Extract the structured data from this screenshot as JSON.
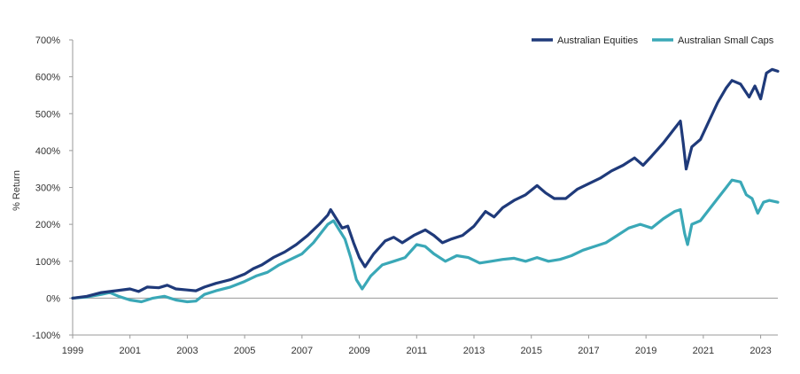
{
  "chart_data": {
    "type": "line",
    "title": "",
    "xlabel": "",
    "ylabel": "% Return",
    "xlim": [
      1999,
      2023.6
    ],
    "ylim": [
      -100,
      700
    ],
    "x_ticks": [
      1999,
      2001,
      2003,
      2005,
      2007,
      2009,
      2011,
      2013,
      2015,
      2017,
      2019,
      2021,
      2023
    ],
    "x_tick_labels": [
      "1999",
      "2001",
      "2003",
      "2005",
      "2007",
      "2009",
      "2011",
      "2013",
      "2015",
      "2017",
      "2019",
      "2021",
      "2023"
    ],
    "y_ticks": [
      -100,
      0,
      100,
      200,
      300,
      400,
      500,
      600,
      700
    ],
    "y_tick_labels": [
      "-100%",
      "0%",
      "100%",
      "200%",
      "300%",
      "400%",
      "500%",
      "600%",
      "700%"
    ],
    "grid": false,
    "legend_position": "top-right",
    "series": [
      {
        "name": "Australian Equities",
        "color": "#1f3a7a",
        "points": [
          [
            1999.0,
            0
          ],
          [
            1999.5,
            5
          ],
          [
            2000.0,
            15
          ],
          [
            2000.5,
            20
          ],
          [
            2001.0,
            25
          ],
          [
            2001.3,
            18
          ],
          [
            2001.6,
            30
          ],
          [
            2002.0,
            28
          ],
          [
            2002.3,
            35
          ],
          [
            2002.6,
            25
          ],
          [
            2003.0,
            22
          ],
          [
            2003.3,
            20
          ],
          [
            2003.6,
            30
          ],
          [
            2004.0,
            40
          ],
          [
            2004.5,
            50
          ],
          [
            2005.0,
            65
          ],
          [
            2005.3,
            80
          ],
          [
            2005.6,
            90
          ],
          [
            2006.0,
            110
          ],
          [
            2006.4,
            125
          ],
          [
            2006.8,
            145
          ],
          [
            2007.2,
            170
          ],
          [
            2007.6,
            200
          ],
          [
            2007.9,
            225
          ],
          [
            2008.0,
            240
          ],
          [
            2008.2,
            215
          ],
          [
            2008.4,
            190
          ],
          [
            2008.6,
            195
          ],
          [
            2008.8,
            150
          ],
          [
            2009.0,
            110
          ],
          [
            2009.2,
            85
          ],
          [
            2009.5,
            120
          ],
          [
            2009.9,
            155
          ],
          [
            2010.2,
            165
          ],
          [
            2010.5,
            150
          ],
          [
            2010.9,
            170
          ],
          [
            2011.3,
            185
          ],
          [
            2011.6,
            170
          ],
          [
            2011.9,
            150
          ],
          [
            2012.2,
            160
          ],
          [
            2012.6,
            170
          ],
          [
            2013.0,
            195
          ],
          [
            2013.4,
            235
          ],
          [
            2013.7,
            220
          ],
          [
            2014.0,
            245
          ],
          [
            2014.4,
            265
          ],
          [
            2014.8,
            280
          ],
          [
            2015.2,
            305
          ],
          [
            2015.5,
            285
          ],
          [
            2015.8,
            270
          ],
          [
            2016.2,
            270
          ],
          [
            2016.6,
            295
          ],
          [
            2017.0,
            310
          ],
          [
            2017.4,
            325
          ],
          [
            2017.8,
            345
          ],
          [
            2018.2,
            360
          ],
          [
            2018.6,
            380
          ],
          [
            2018.9,
            360
          ],
          [
            2019.2,
            385
          ],
          [
            2019.6,
            420
          ],
          [
            2020.0,
            460
          ],
          [
            2020.2,
            480
          ],
          [
            2020.3,
            420
          ],
          [
            2020.4,
            350
          ],
          [
            2020.6,
            410
          ],
          [
            2020.9,
            430
          ],
          [
            2021.2,
            480
          ],
          [
            2021.5,
            530
          ],
          [
            2021.8,
            570
          ],
          [
            2022.0,
            590
          ],
          [
            2022.3,
            580
          ],
          [
            2022.6,
            545
          ],
          [
            2022.8,
            575
          ],
          [
            2023.0,
            540
          ],
          [
            2023.2,
            610
          ],
          [
            2023.4,
            620
          ],
          [
            2023.6,
            615
          ]
        ]
      },
      {
        "name": "Australian Small Caps",
        "color": "#3aa8b7",
        "points": [
          [
            1999.0,
            0
          ],
          [
            1999.5,
            3
          ],
          [
            2000.0,
            10
          ],
          [
            2000.3,
            15
          ],
          [
            2000.6,
            5
          ],
          [
            2001.0,
            -5
          ],
          [
            2001.4,
            -10
          ],
          [
            2001.8,
            0
          ],
          [
            2002.2,
            5
          ],
          [
            2002.6,
            -5
          ],
          [
            2003.0,
            -10
          ],
          [
            2003.3,
            -8
          ],
          [
            2003.6,
            10
          ],
          [
            2004.0,
            20
          ],
          [
            2004.5,
            30
          ],
          [
            2005.0,
            45
          ],
          [
            2005.4,
            60
          ],
          [
            2005.8,
            70
          ],
          [
            2006.2,
            90
          ],
          [
            2006.6,
            105
          ],
          [
            2007.0,
            120
          ],
          [
            2007.4,
            150
          ],
          [
            2007.7,
            180
          ],
          [
            2007.9,
            200
          ],
          [
            2008.1,
            210
          ],
          [
            2008.3,
            185
          ],
          [
            2008.5,
            160
          ],
          [
            2008.7,
            110
          ],
          [
            2008.9,
            50
          ],
          [
            2009.1,
            25
          ],
          [
            2009.4,
            60
          ],
          [
            2009.8,
            90
          ],
          [
            2010.2,
            100
          ],
          [
            2010.6,
            110
          ],
          [
            2011.0,
            145
          ],
          [
            2011.3,
            140
          ],
          [
            2011.6,
            120
          ],
          [
            2012.0,
            100
          ],
          [
            2012.4,
            115
          ],
          [
            2012.8,
            110
          ],
          [
            2013.2,
            95
          ],
          [
            2013.6,
            100
          ],
          [
            2014.0,
            105
          ],
          [
            2014.4,
            108
          ],
          [
            2014.8,
            100
          ],
          [
            2015.2,
            110
          ],
          [
            2015.6,
            100
          ],
          [
            2016.0,
            105
          ],
          [
            2016.4,
            115
          ],
          [
            2016.8,
            130
          ],
          [
            2017.2,
            140
          ],
          [
            2017.6,
            150
          ],
          [
            2018.0,
            170
          ],
          [
            2018.4,
            190
          ],
          [
            2018.8,
            200
          ],
          [
            2019.2,
            190
          ],
          [
            2019.6,
            215
          ],
          [
            2020.0,
            235
          ],
          [
            2020.2,
            240
          ],
          [
            2020.35,
            175
          ],
          [
            2020.45,
            145
          ],
          [
            2020.6,
            200
          ],
          [
            2020.9,
            210
          ],
          [
            2021.2,
            240
          ],
          [
            2021.5,
            270
          ],
          [
            2021.8,
            300
          ],
          [
            2022.0,
            320
          ],
          [
            2022.3,
            315
          ],
          [
            2022.5,
            280
          ],
          [
            2022.7,
            270
          ],
          [
            2022.9,
            230
          ],
          [
            2023.1,
            260
          ],
          [
            2023.3,
            265
          ],
          [
            2023.6,
            260
          ]
        ]
      }
    ]
  }
}
